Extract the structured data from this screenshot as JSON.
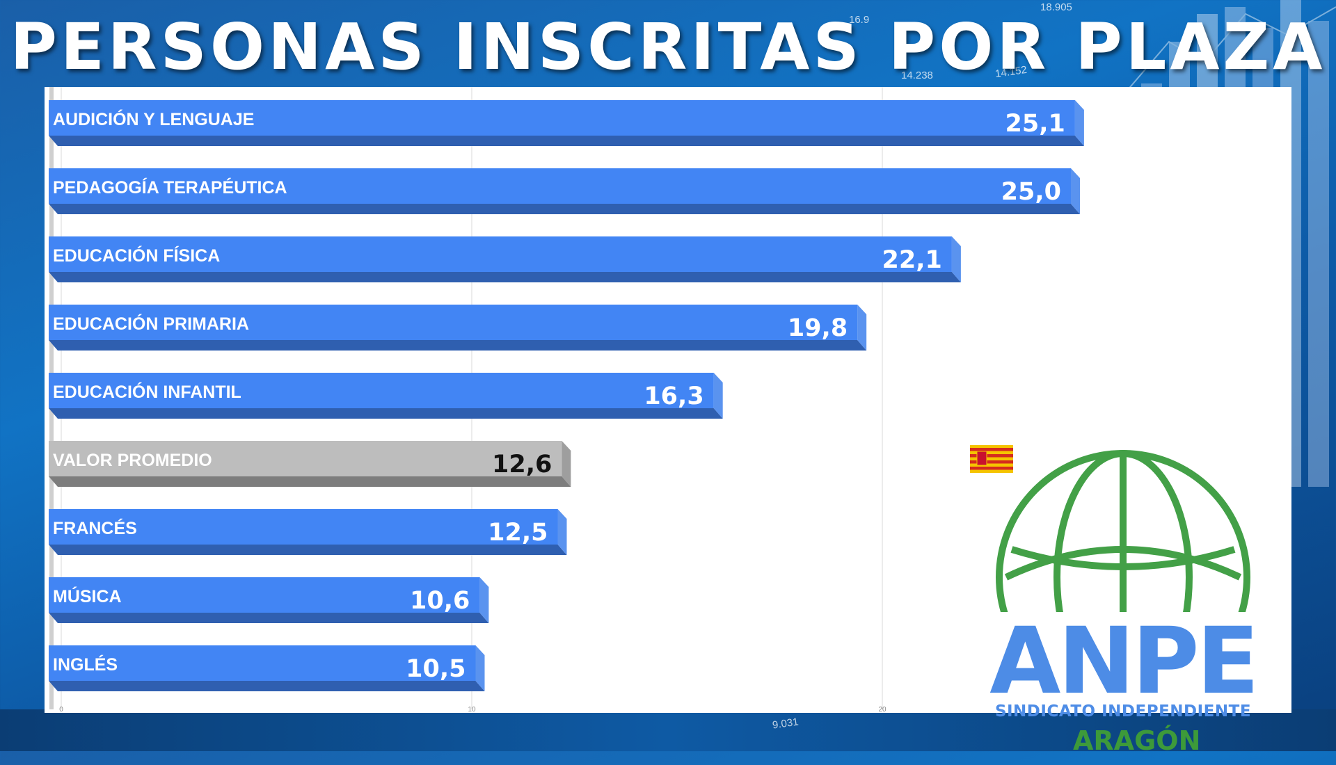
{
  "title": "PERSONAS INSCRITAS POR PLAZA",
  "colors": {
    "bar_main": "#4285f4",
    "bar_main_dark": "#2f5fb0",
    "bar_avg": "#bdbdbd",
    "bar_avg_dark": "#7d7d7d",
    "value_on_main": "#ffffff",
    "value_on_avg": "#111111",
    "logo_green": "#43a047",
    "logo_blue": "#4d8ce6"
  },
  "chart_data": {
    "type": "bar",
    "orientation": "horizontal",
    "categories": [
      "AUDICIÓN Y LENGUAJE",
      "PEDAGOGÍA TERAPÉUTICA",
      "EDUCACIÓN FÍSICA",
      "EDUCACIÓN PRIMARIA",
      "EDUCACIÓN INFANTIL",
      "VALOR PROMEDIO",
      "FRANCÉS",
      "MÚSICA",
      "INGLÉS"
    ],
    "values": [
      25.1,
      25.0,
      22.1,
      19.8,
      16.3,
      12.6,
      12.5,
      10.6,
      10.5
    ],
    "value_labels": [
      "25,1",
      "25,0",
      "22,1",
      "19,8",
      "16,3",
      "12,6",
      "12,5",
      "10,6",
      "10,5"
    ],
    "highlight": "VALOR PROMEDIO",
    "xlim": [
      0,
      30
    ],
    "x_ticks": [
      "0",
      "10",
      "20"
    ],
    "grid": true
  },
  "background_numbers": [
    "9.031",
    "14.238",
    "14.152",
    "16.9",
    "18.905"
  ],
  "logo": {
    "name": "ANPE",
    "subtitle": "SINDICATO INDEPENDIENTE",
    "region": "ARAGÓN"
  }
}
